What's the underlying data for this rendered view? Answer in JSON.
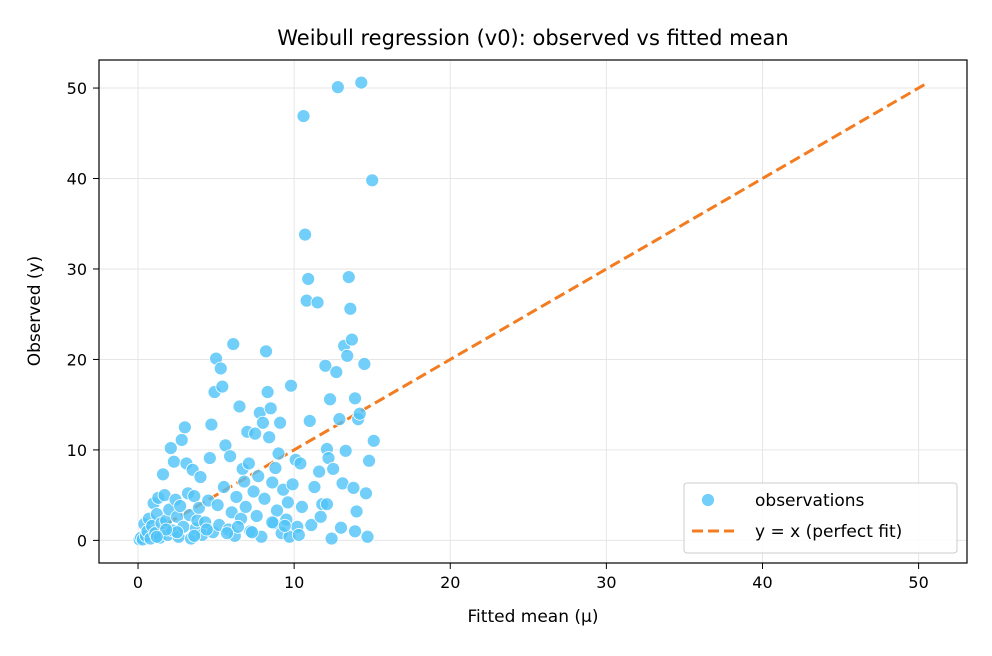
{
  "chart_data": {
    "type": "scatter",
    "title": "Weibull regression (v0): observed vs fitted mean",
    "xlabel": "Fitted mean (μ)",
    "ylabel": "Observed (y)",
    "xlim": [
      -2.5,
      53.1
    ],
    "ylim": [
      -2.5,
      53.1
    ],
    "xticks": [
      0,
      10,
      20,
      30,
      40,
      50
    ],
    "yticks": [
      0,
      10,
      20,
      30,
      40,
      50
    ],
    "xtick_labels": [
      "0",
      "10",
      "20",
      "30",
      "40",
      "50"
    ],
    "ytick_labels": [
      "0",
      "10",
      "20",
      "30",
      "40",
      "50"
    ],
    "grid": true,
    "legend_position": "lower-right",
    "colors": {
      "points": "#4fc3f7",
      "line": "#f47c20"
    },
    "series": [
      {
        "name": "observations",
        "type": "scatter",
        "points": [
          [
            0.1,
            0.1
          ],
          [
            0.2,
            0.3
          ],
          [
            0.3,
            0.1
          ],
          [
            0.4,
            1.8
          ],
          [
            0.5,
            0.5
          ],
          [
            0.6,
            1.0
          ],
          [
            0.7,
            2.4
          ],
          [
            0.8,
            0.2
          ],
          [
            0.9,
            1.6
          ],
          [
            1.0,
            4.1
          ],
          [
            1.1,
            0.8
          ],
          [
            1.2,
            2.9
          ],
          [
            1.3,
            4.7
          ],
          [
            1.4,
            0.3
          ],
          [
            1.5,
            1.9
          ],
          [
            1.6,
            7.3
          ],
          [
            1.7,
            5.0
          ],
          [
            1.8,
            2.2
          ],
          [
            1.9,
            0.6
          ],
          [
            2.0,
            3.4
          ],
          [
            2.1,
            10.2
          ],
          [
            2.2,
            1.1
          ],
          [
            2.3,
            8.7
          ],
          [
            2.4,
            4.5
          ],
          [
            2.5,
            2.6
          ],
          [
            2.6,
            0.4
          ],
          [
            2.7,
            3.8
          ],
          [
            2.8,
            11.1
          ],
          [
            2.9,
            1.5
          ],
          [
            3.0,
            12.5
          ],
          [
            3.1,
            8.5
          ],
          [
            3.2,
            5.2
          ],
          [
            3.3,
            2.8
          ],
          [
            3.4,
            0.2
          ],
          [
            3.5,
            7.8
          ],
          [
            3.6,
            4.9
          ],
          [
            3.7,
            1.3
          ],
          [
            3.8,
            2.2
          ],
          [
            3.9,
            3.6
          ],
          [
            4.0,
            7.0
          ],
          [
            4.1,
            0.6
          ],
          [
            4.3,
            2.0
          ],
          [
            4.5,
            4.4
          ],
          [
            4.6,
            9.1
          ],
          [
            4.7,
            12.8
          ],
          [
            4.8,
            0.9
          ],
          [
            4.9,
            16.4
          ],
          [
            5.0,
            20.1
          ],
          [
            5.1,
            3.9
          ],
          [
            5.2,
            1.7
          ],
          [
            5.3,
            19.0
          ],
          [
            5.4,
            17.0
          ],
          [
            5.5,
            5.9
          ],
          [
            5.6,
            10.5
          ],
          [
            5.8,
            1.2
          ],
          [
            5.9,
            9.3
          ],
          [
            6.0,
            3.1
          ],
          [
            6.1,
            21.7
          ],
          [
            6.2,
            0.5
          ],
          [
            6.3,
            4.8
          ],
          [
            6.5,
            14.8
          ],
          [
            6.6,
            2.4
          ],
          [
            6.7,
            7.9
          ],
          [
            6.8,
            6.5
          ],
          [
            6.9,
            3.7
          ],
          [
            7.0,
            12.0
          ],
          [
            7.1,
            8.5
          ],
          [
            7.2,
            1.0
          ],
          [
            7.4,
            5.4
          ],
          [
            7.5,
            11.8
          ],
          [
            7.6,
            2.7
          ],
          [
            7.7,
            7.1
          ],
          [
            7.8,
            14.1
          ],
          [
            7.9,
            0.4
          ],
          [
            8.0,
            13.0
          ],
          [
            8.1,
            4.6
          ],
          [
            8.2,
            20.9
          ],
          [
            8.3,
            16.4
          ],
          [
            8.4,
            11.4
          ],
          [
            8.5,
            14.6
          ],
          [
            8.6,
            6.4
          ],
          [
            8.7,
            1.9
          ],
          [
            8.8,
            8.0
          ],
          [
            8.9,
            3.3
          ],
          [
            9.0,
            9.6
          ],
          [
            9.1,
            13.0
          ],
          [
            9.2,
            0.8
          ],
          [
            9.3,
            5.6
          ],
          [
            9.5,
            2.3
          ],
          [
            9.6,
            4.2
          ],
          [
            9.7,
            0.4
          ],
          [
            9.8,
            17.1
          ],
          [
            9.9,
            6.2
          ],
          [
            10.1,
            8.9
          ],
          [
            10.2,
            1.5
          ],
          [
            10.4,
            8.5
          ],
          [
            10.5,
            3.7
          ],
          [
            10.6,
            46.9
          ],
          [
            10.7,
            33.8
          ],
          [
            10.8,
            26.5
          ],
          [
            10.9,
            28.9
          ],
          [
            11.0,
            13.2
          ],
          [
            11.1,
            1.7
          ],
          [
            11.3,
            5.9
          ],
          [
            11.5,
            26.3
          ],
          [
            11.6,
            7.6
          ],
          [
            11.8,
            4.0
          ],
          [
            12.0,
            19.3
          ],
          [
            12.1,
            10.1
          ],
          [
            12.2,
            9.1
          ],
          [
            12.3,
            15.6
          ],
          [
            12.4,
            0.2
          ],
          [
            12.5,
            7.9
          ],
          [
            12.7,
            18.6
          ],
          [
            12.8,
            50.1
          ],
          [
            12.9,
            13.4
          ],
          [
            13.0,
            1.4
          ],
          [
            13.1,
            6.3
          ],
          [
            13.2,
            21.5
          ],
          [
            13.3,
            9.9
          ],
          [
            13.4,
            20.4
          ],
          [
            13.5,
            29.1
          ],
          [
            13.6,
            25.6
          ],
          [
            13.7,
            22.2
          ],
          [
            13.8,
            5.8
          ],
          [
            13.9,
            15.7
          ],
          [
            14.0,
            3.2
          ],
          [
            14.1,
            13.4
          ],
          [
            14.2,
            14.0
          ],
          [
            14.3,
            50.6
          ],
          [
            14.5,
            19.5
          ],
          [
            14.6,
            5.2
          ],
          [
            14.7,
            0.4
          ],
          [
            14.8,
            8.8
          ],
          [
            15.0,
            39.8
          ],
          [
            15.1,
            11.0
          ],
          [
            13.9,
            1.0
          ],
          [
            12.1,
            4.0
          ],
          [
            11.7,
            2.6
          ],
          [
            10.3,
            0.6
          ],
          [
            9.4,
            1.6
          ],
          [
            8.6,
            2.0
          ],
          [
            7.3,
            0.9
          ],
          [
            6.4,
            1.5
          ],
          [
            5.7,
            0.8
          ],
          [
            4.4,
            1.2
          ],
          [
            3.6,
            0.5
          ],
          [
            2.5,
            0.9
          ],
          [
            1.8,
            1.2
          ],
          [
            1.2,
            0.4
          ]
        ]
      },
      {
        "name": "y = x (perfect fit)",
        "type": "line",
        "style": "dashed",
        "points": [
          [
            0.1,
            0.1
          ],
          [
            50.6,
            50.6
          ]
        ]
      }
    ]
  }
}
